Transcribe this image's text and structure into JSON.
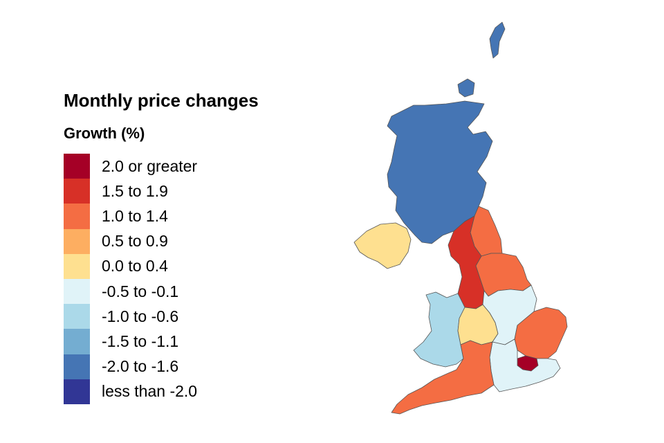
{
  "title": "Monthly price changes",
  "subtitle": "Growth (%)",
  "legend": [
    {
      "label": "2.0 or greater",
      "color": "#a50026"
    },
    {
      "label": "1.5 to 1.9",
      "color": "#d73027"
    },
    {
      "label": "1.0 to 1.4",
      "color": "#f46d43"
    },
    {
      "label": "0.5 to 0.9",
      "color": "#fdae61"
    },
    {
      "label": "0.0 to 0.4",
      "color": "#fee090"
    },
    {
      "label": "-0.5 to -0.1",
      "color": "#e0f3f8"
    },
    {
      "label": "-1.0 to -0.6",
      "color": "#abd9e9"
    },
    {
      "label": "-1.5 to -1.1",
      "color": "#74add1"
    },
    {
      "label": "-2.0 to -1.6",
      "color": "#4575b4"
    },
    {
      "label": "less than -2.0",
      "color": "#313695"
    }
  ],
  "regions": [
    {
      "name": "Scotland",
      "band": "-2.0 to -1.6",
      "color": "#4575b4"
    },
    {
      "name": "Northern Ireland",
      "band": "0.0 to 0.4",
      "color": "#fee090"
    },
    {
      "name": "North East",
      "band": "1.0 to 1.4",
      "color": "#f46d43"
    },
    {
      "name": "North West",
      "band": "1.5 to 1.9",
      "color": "#d73027"
    },
    {
      "name": "Yorkshire and The Humber",
      "band": "1.0 to 1.4",
      "color": "#f46d43"
    },
    {
      "name": "Wales",
      "band": "-1.0 to -0.6",
      "color": "#abd9e9"
    },
    {
      "name": "West Midlands",
      "band": "0.0 to 0.4",
      "color": "#fee090"
    },
    {
      "name": "East Midlands",
      "band": "-0.5 to -0.1",
      "color": "#e0f3f8"
    },
    {
      "name": "East of England",
      "band": "1.0 to 1.4",
      "color": "#f46d43"
    },
    {
      "name": "London",
      "band": "2.0 or greater",
      "color": "#a50026"
    },
    {
      "name": "South East",
      "band": "-0.5 to -0.1",
      "color": "#e0f3f8"
    },
    {
      "name": "South West",
      "band": "1.0 to 1.4",
      "color": "#f46d43"
    }
  ]
}
